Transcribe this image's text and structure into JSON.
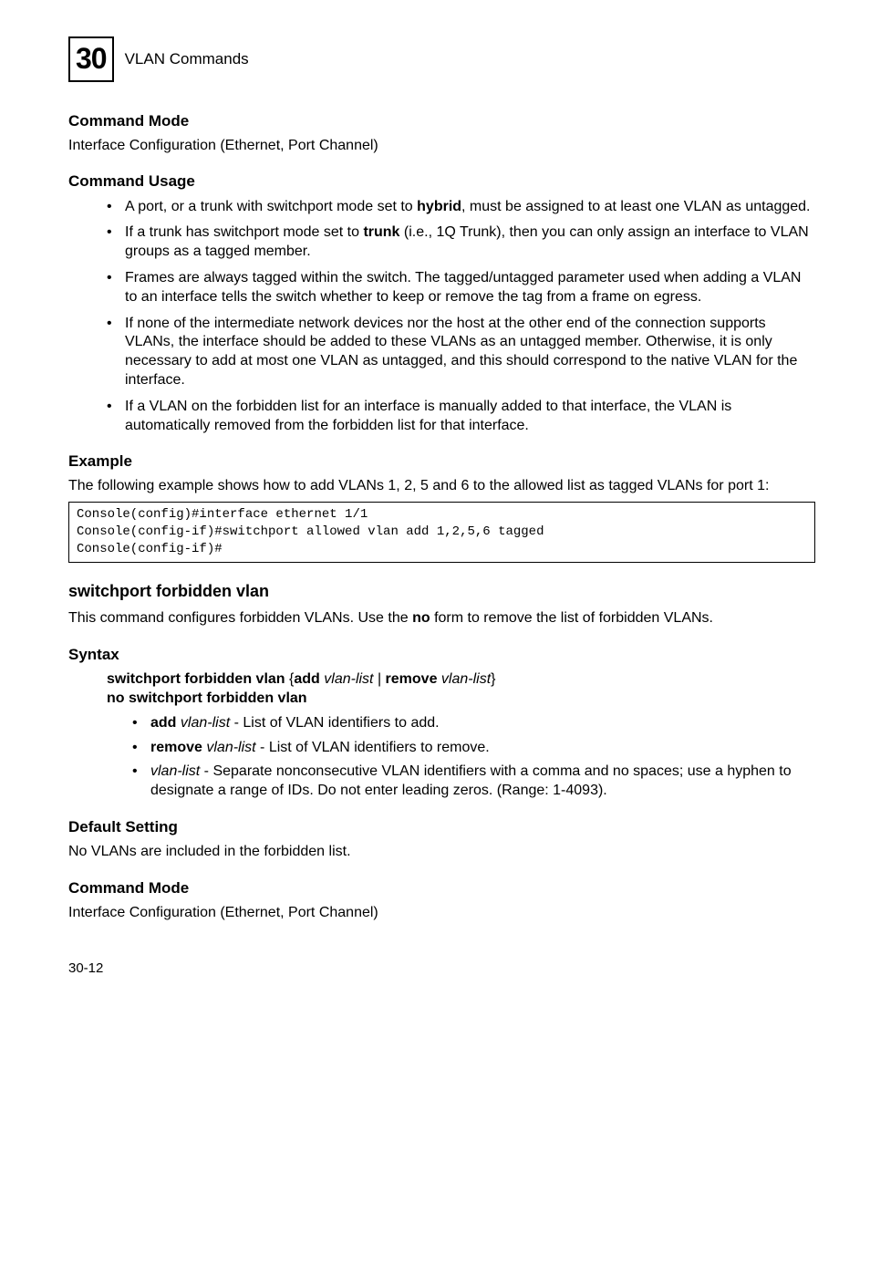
{
  "header": {
    "chapter_number": "30",
    "chapter_title": "VLAN Commands"
  },
  "sections": {
    "cmd_mode_1": {
      "heading": "Command Mode",
      "text": "Interface Configuration (Ethernet, Port Channel)"
    },
    "cmd_usage": {
      "heading": "Command Usage",
      "bullets": {
        "b1_pre": "A port, or a trunk with switchport mode set to ",
        "b1_bold": "hybrid",
        "b1_post": ", must be assigned to at least one VLAN as untagged.",
        "b2_pre": "If a trunk has switchport mode set to ",
        "b2_bold": "trunk",
        "b2_post": " (i.e., 1Q Trunk), then you can only assign an interface to VLAN groups as a tagged member.",
        "b3": "Frames are always tagged within the switch. The tagged/untagged parameter used when adding a VLAN to an interface tells the switch whether to keep or remove the tag from a frame on egress.",
        "b4": "If none of the intermediate network devices nor the host at the other end of the connection supports VLANs, the interface should be added to these VLANs as an untagged member. Otherwise, it is only necessary to add at most one VLAN as untagged, and this should correspond to the native VLAN for the interface.",
        "b5": "If a VLAN on the forbidden list for an interface is manually added to that interface, the VLAN is automatically removed from the forbidden list for that interface."
      }
    },
    "example": {
      "heading": "Example",
      "text": "The following example shows how to add VLANs 1, 2, 5 and 6 to the allowed list as tagged VLANs for port 1:",
      "code": "Console(config)#interface ethernet 1/1\nConsole(config-if)#switchport allowed vlan add 1,2,5,6 tagged\nConsole(config-if)#"
    },
    "forbidden": {
      "heading": "switchport forbidden vlan",
      "text_pre": "This command configures forbidden VLANs. Use the ",
      "text_bold": "no",
      "text_post": " form to remove the list of forbidden VLANs."
    },
    "syntax": {
      "heading": "Syntax",
      "line1_p1": "switchport forbidden vlan",
      "line1_p2": " {",
      "line1_p3": "add",
      "line1_p4_italic": " vlan-list",
      "line1_p5": " | ",
      "line1_p6": "remove",
      "line1_p7_italic": " vlan-list",
      "line1_p8": "}",
      "line2": "no switchport forbidden vlan",
      "sub": {
        "s1_bold": "add",
        "s1_italic": " vlan-list",
        "s1_rest": " - List of VLAN identifiers to add.",
        "s2_bold": "remove",
        "s2_italic": " vlan-list",
        "s2_rest": " - List of VLAN identifiers to remove.",
        "s3_italic": "vlan-list",
        "s3_rest": " - Separate nonconsecutive VLAN identifiers with a comma and no spaces; use a hyphen to designate a range of IDs. Do not enter leading zeros. (Range: 1-4093)."
      }
    },
    "default_setting": {
      "heading": "Default Setting",
      "text": "No VLANs are included in the forbidden list."
    },
    "cmd_mode_2": {
      "heading": "Command Mode",
      "text": "Interface Configuration (Ethernet, Port Channel)"
    }
  },
  "footer": {
    "page": "30-12"
  }
}
